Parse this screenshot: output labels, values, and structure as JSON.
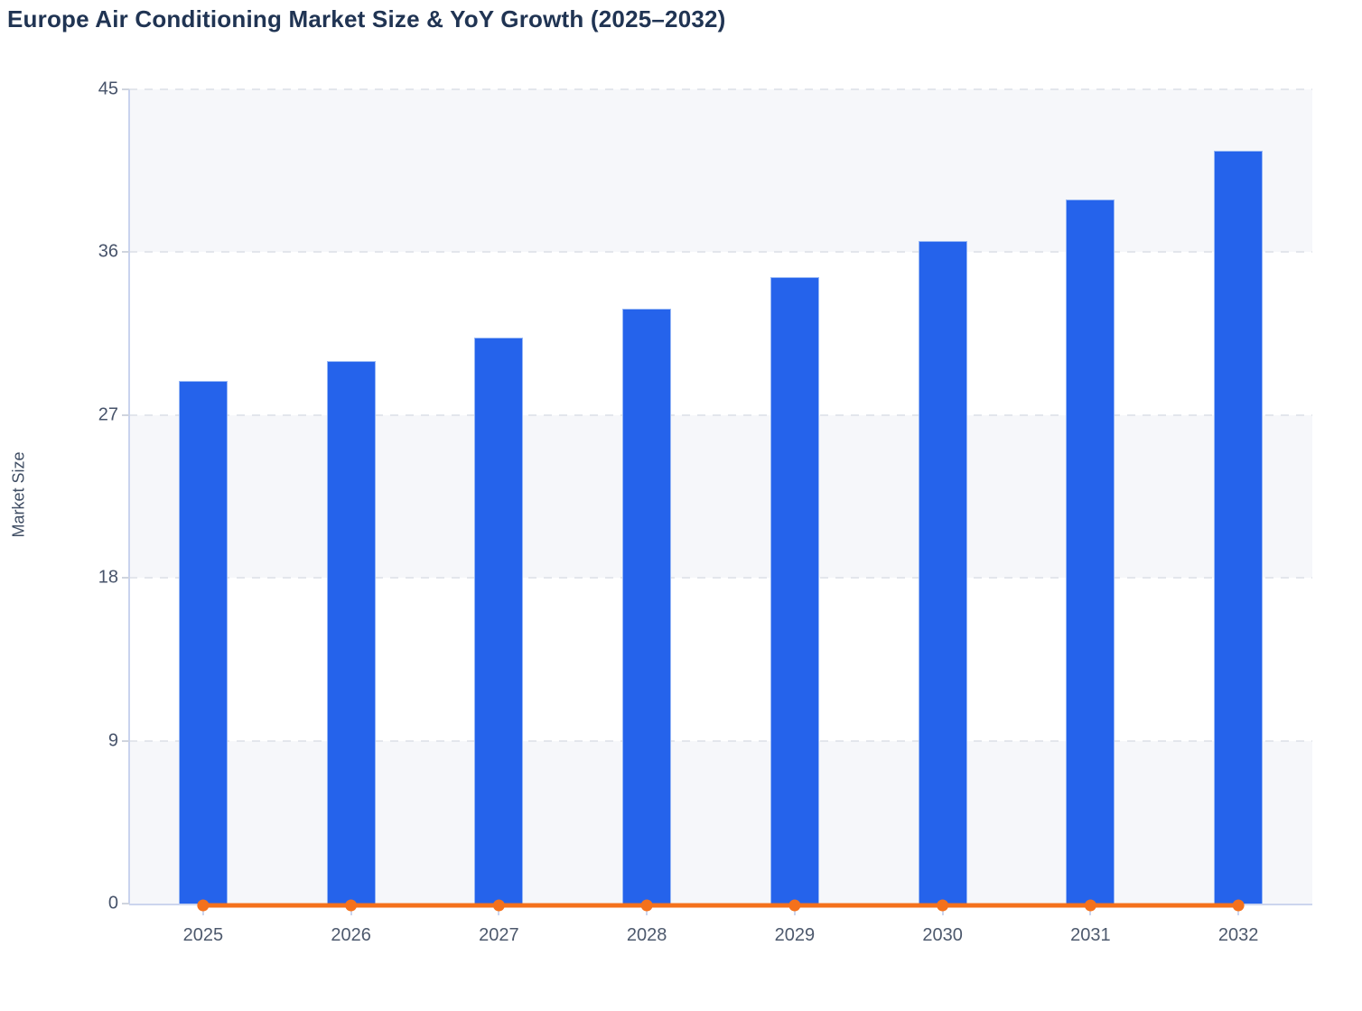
{
  "page": {
    "title": "Europe Air Conditioning Market Size & YoY Growth (2025–2032)"
  },
  "chart_data": {
    "type": "combo",
    "title": "Europe Air Conditioning Market Size & YoY Growth (2025–2032)",
    "xlabel": "",
    "ylabel": "Market Size",
    "categories": [
      "2025",
      "2026",
      "2027",
      "2028",
      "2029",
      "2030",
      "2031",
      "2032"
    ],
    "series": [
      {
        "name": "Market Size",
        "type": "bar",
        "color": "#2563eb",
        "values": [
          28.9,
          30.0,
          31.3,
          32.9,
          34.6,
          36.6,
          38.9,
          41.6
        ]
      },
      {
        "name": "YoY Growth",
        "type": "line",
        "color": "#f4711c",
        "values": [
          0,
          0,
          0,
          0,
          0,
          0,
          0,
          0
        ],
        "note": "line renders flat along the zero baseline with a round dot marker at each year"
      }
    ],
    "ylim": [
      0,
      45
    ],
    "y_ticks": [
      0,
      9,
      18,
      27,
      36,
      45
    ],
    "grid": "dashed horizontal gridlines at each y tick",
    "plot_bands": "alternating light-gray / white horizontal bands between gridlines, gray topmost",
    "legend": "none",
    "colors": {
      "bar": "#2563eb",
      "bar_edge": "#acc6f7",
      "line": "#f4711c",
      "band": "#f6f7fa",
      "grid": "#e3e6ec",
      "axis": "#c9d3ee",
      "title_text": "#203453",
      "tick_text": "#47536a"
    }
  }
}
